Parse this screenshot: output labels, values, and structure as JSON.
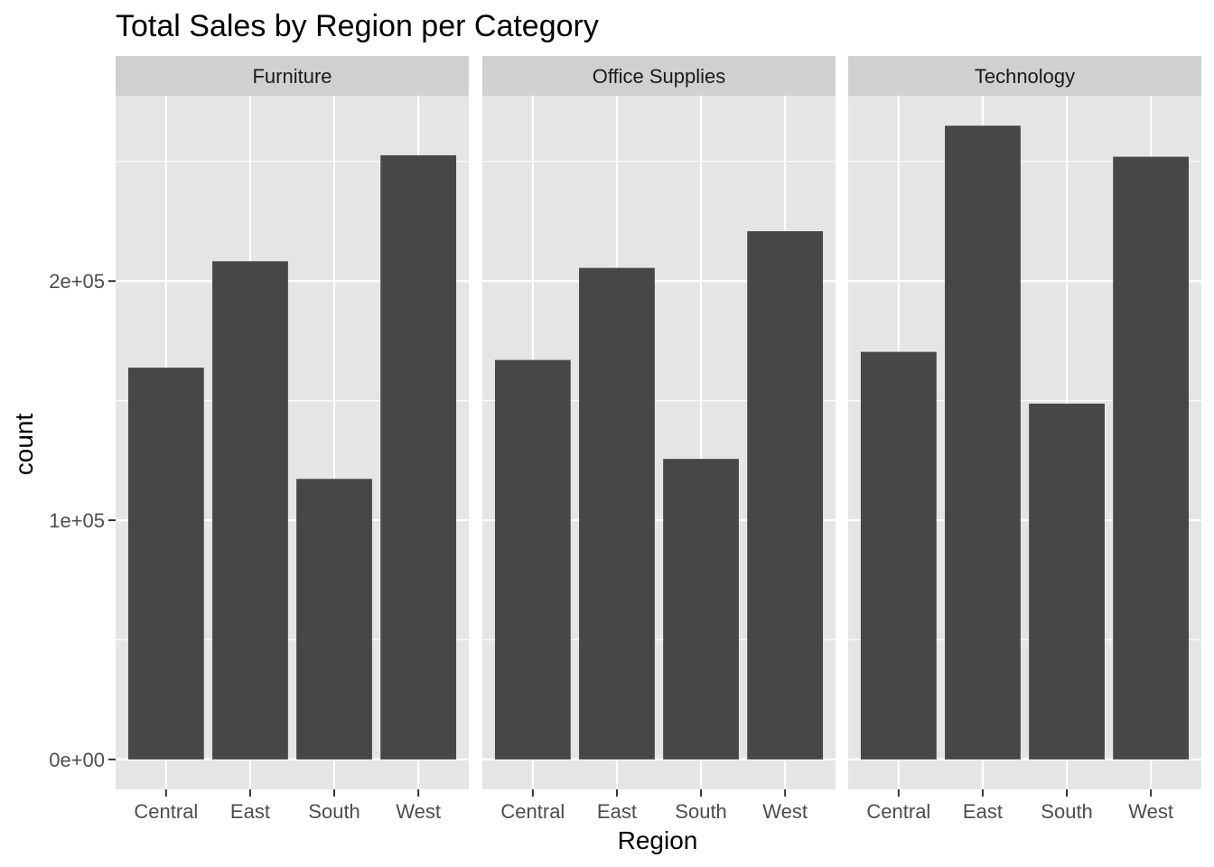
{
  "colors": {
    "panel_background": "#e5e5e5",
    "strip_background": "#d0d0d0",
    "gridline": "#ffffff",
    "bar_fill": "#474747",
    "tick_mark": "#333333",
    "tick_text": "#4d4d4d",
    "title_text": "#000000"
  },
  "chart_data": {
    "type": "bar",
    "title": "Total Sales by Region per Category",
    "xlabel": "Region",
    "ylabel": "count",
    "categories": [
      "Central",
      "East",
      "South",
      "West"
    ],
    "facets": [
      {
        "name": "Furniture",
        "values": [
          163797,
          208291,
          117299,
          252613
        ]
      },
      {
        "name": "Office Supplies",
        "values": [
          167026,
          205516,
          125651,
          220853
        ]
      },
      {
        "name": "Technology",
        "values": [
          170416,
          264974,
          148772,
          251992
        ]
      }
    ],
    "ylim": [
      -12500,
      277500
    ],
    "yticks": [
      {
        "value": 0,
        "label": "0e+00"
      },
      {
        "value": 100000,
        "label": "1e+05"
      },
      {
        "value": 200000,
        "label": "2e+05"
      }
    ],
    "y_minor_gridlines": [
      50000,
      150000,
      250000
    ],
    "grid": true,
    "legend": "none"
  }
}
